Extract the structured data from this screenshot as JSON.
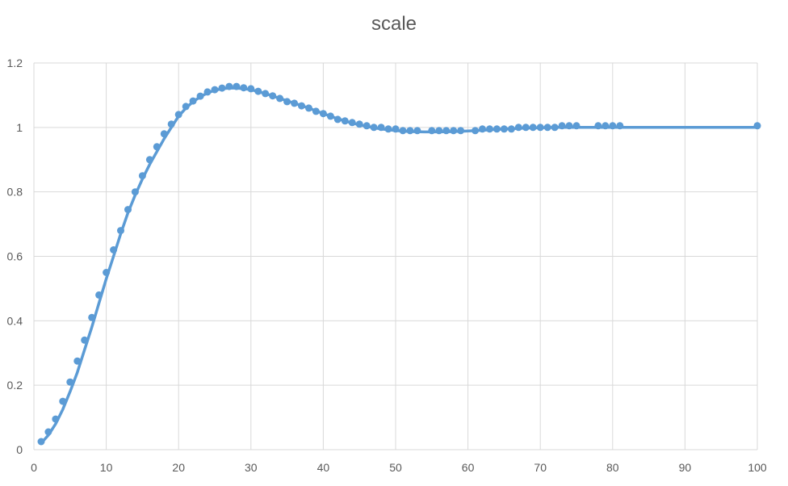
{
  "chart_data": {
    "type": "scatter",
    "title": "scale",
    "xlabel": "",
    "ylabel": "",
    "xlim": [
      0,
      100
    ],
    "ylim": [
      0,
      1.2
    ],
    "xticks": [
      "0",
      "10",
      "20",
      "30",
      "40",
      "50",
      "60",
      "70",
      "80",
      "90",
      "100"
    ],
    "yticks": [
      "0",
      "0.2",
      "0.4",
      "0.6",
      "0.8",
      "1",
      "1.2"
    ],
    "grid": true,
    "legend": "none",
    "colors": {
      "series": "#5b9bd5",
      "grid": "#d9d9d9",
      "text": "#595959"
    },
    "series": [
      {
        "style": "markers",
        "x": [
          1,
          2,
          3,
          4,
          5,
          6,
          7,
          8,
          9,
          10,
          11,
          12,
          13,
          14,
          15,
          16,
          17,
          18,
          19,
          20,
          21,
          22,
          23,
          24,
          25,
          26,
          27,
          28,
          29,
          30,
          31,
          32,
          33,
          34,
          35,
          36,
          37,
          38,
          39,
          40,
          41,
          42,
          43,
          44,
          45,
          46,
          47,
          48,
          49,
          50,
          51,
          52,
          53,
          55,
          56,
          57,
          58,
          59,
          61,
          62,
          63,
          64,
          65,
          66,
          67,
          68,
          69,
          70,
          71,
          72,
          73,
          74,
          75,
          78,
          79,
          80,
          81,
          100
        ],
        "y": [
          0.025,
          0.055,
          0.095,
          0.15,
          0.21,
          0.275,
          0.34,
          0.41,
          0.48,
          0.55,
          0.62,
          0.68,
          0.745,
          0.8,
          0.85,
          0.9,
          0.94,
          0.98,
          1.01,
          1.04,
          1.065,
          1.082,
          1.097,
          1.11,
          1.117,
          1.122,
          1.127,
          1.127,
          1.123,
          1.12,
          1.112,
          1.105,
          1.098,
          1.09,
          1.08,
          1.075,
          1.067,
          1.06,
          1.05,
          1.043,
          1.035,
          1.025,
          1.02,
          1.015,
          1.01,
          1.005,
          1.0,
          1.0,
          0.995,
          0.995,
          0.99,
          0.99,
          0.99,
          0.99,
          0.99,
          0.99,
          0.99,
          0.99,
          0.99,
          0.995,
          0.995,
          0.995,
          0.995,
          0.995,
          1.0,
          1.0,
          1.0,
          1.0,
          1.0,
          1.0,
          1.005,
          1.005,
          1.005,
          1.005,
          1.005,
          1.005,
          1.005,
          1.005
        ]
      },
      {
        "style": "line",
        "x": [
          1,
          2,
          3,
          4,
          5,
          6,
          7,
          8,
          9,
          10,
          11,
          12,
          13,
          14,
          15,
          16,
          17,
          18,
          19,
          20,
          21,
          22,
          23,
          24,
          25,
          26,
          27,
          28,
          29,
          30,
          32,
          34,
          36,
          38,
          40,
          42,
          44,
          46,
          48,
          50,
          52,
          54,
          56,
          58,
          60,
          62,
          64,
          66,
          68,
          70,
          72,
          74,
          76,
          78,
          80,
          85,
          90,
          95,
          100
        ],
        "y": [
          0.02,
          0.045,
          0.08,
          0.125,
          0.18,
          0.24,
          0.31,
          0.38,
          0.455,
          0.53,
          0.6,
          0.67,
          0.735,
          0.79,
          0.84,
          0.885,
          0.925,
          0.965,
          1.0,
          1.035,
          1.06,
          1.08,
          1.095,
          1.107,
          1.115,
          1.12,
          1.122,
          1.122,
          1.12,
          1.117,
          1.105,
          1.09,
          1.075,
          1.06,
          1.043,
          1.027,
          1.013,
          1.003,
          0.995,
          0.99,
          0.987,
          0.986,
          0.986,
          0.987,
          0.989,
          0.991,
          0.994,
          0.996,
          0.998,
          0.999,
          1.0,
          1.0,
          1.0,
          1.0,
          1.0,
          1.0,
          1.0,
          1.0,
          1.0
        ]
      }
    ]
  }
}
